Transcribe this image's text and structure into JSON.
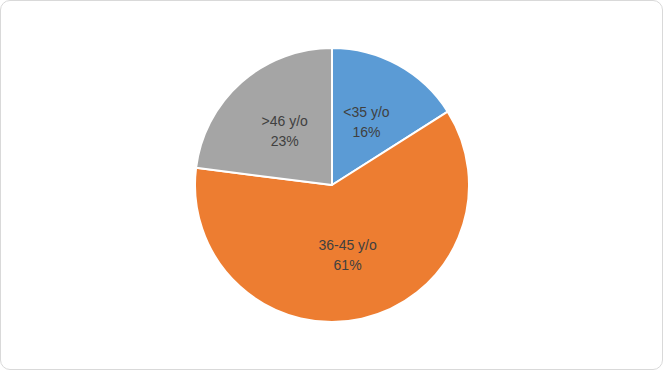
{
  "chart_data": {
    "type": "pie",
    "categories": [
      "<35 y/o",
      "36-45 y/o",
      ">46 y/o"
    ],
    "values": [
      16,
      61,
      23
    ],
    "value_labels": [
      "16%",
      "61%",
      "23%"
    ],
    "colors": [
      "#5b9bd5",
      "#ed7d31",
      "#a5a5a5"
    ],
    "data_labels": true
  }
}
